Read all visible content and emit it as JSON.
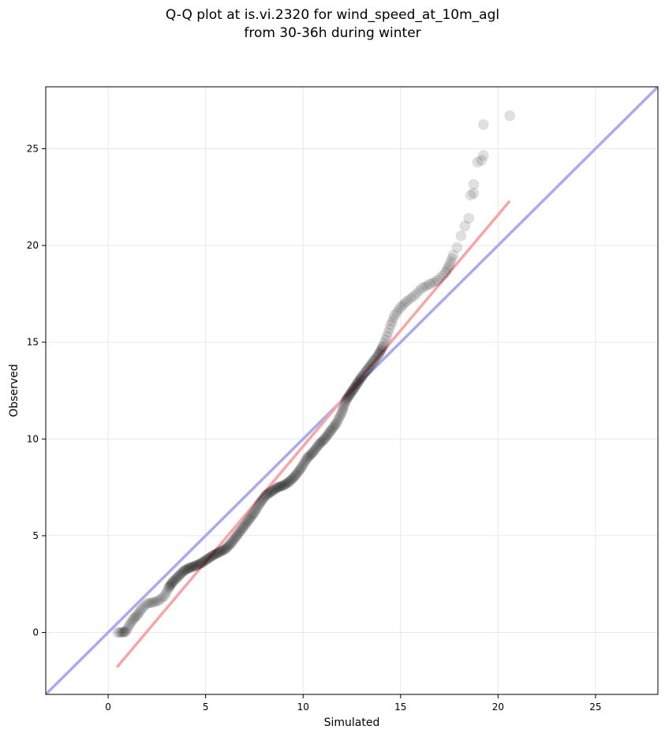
{
  "chart_data": {
    "type": "scatter",
    "title_line1": "Q-Q plot at is.vi.2320 for wind_speed_at_10m_agl",
    "title_line2": "from 30-36h during winter",
    "xlabel": "Simulated",
    "ylabel": "Observed",
    "xlim": [
      -3.2,
      28.2
    ],
    "ylim": [
      -3.2,
      28.2
    ],
    "xticks": [
      0,
      5,
      10,
      15,
      20,
      25
    ],
    "yticks": [
      0,
      5,
      10,
      15,
      20,
      25
    ],
    "grid": true,
    "colors": {
      "points": "#000000",
      "identity_line": "#aaaaf0",
      "fit_line": "#f5a6a6",
      "grid": "#e8e8e8"
    },
    "identity_line": {
      "x": [
        -3.2,
        28.2
      ],
      "y": [
        -3.2,
        28.2
      ]
    },
    "fit_line": {
      "x": [
        0.45,
        20.6
      ],
      "y": [
        -1.8,
        22.3
      ]
    },
    "points": [
      [
        0.5,
        0.0
      ],
      [
        0.75,
        0.0
      ],
      [
        0.9,
        0.05
      ],
      [
        1.1,
        0.4
      ],
      [
        1.3,
        0.7
      ],
      [
        1.5,
        0.9
      ],
      [
        1.7,
        1.2
      ],
      [
        2.0,
        1.5
      ],
      [
        2.3,
        1.55
      ],
      [
        2.6,
        1.65
      ],
      [
        2.9,
        1.9
      ],
      [
        3.1,
        2.3
      ],
      [
        3.3,
        2.6
      ],
      [
        3.6,
        2.9
      ],
      [
        3.9,
        3.2
      ],
      [
        4.2,
        3.35
      ],
      [
        4.5,
        3.45
      ],
      [
        4.8,
        3.6
      ],
      [
        5.1,
        3.8
      ],
      [
        5.4,
        4.0
      ],
      [
        5.7,
        4.15
      ],
      [
        6.0,
        4.3
      ],
      [
        6.3,
        4.6
      ],
      [
        6.6,
        5.0
      ],
      [
        6.9,
        5.4
      ],
      [
        7.2,
        5.8
      ],
      [
        7.5,
        6.2
      ],
      [
        7.8,
        6.7
      ],
      [
        8.1,
        7.1
      ],
      [
        8.4,
        7.3
      ],
      [
        8.7,
        7.5
      ],
      [
        9.0,
        7.6
      ],
      [
        9.3,
        7.8
      ],
      [
        9.6,
        8.1
      ],
      [
        9.9,
        8.5
      ],
      [
        10.2,
        9.0
      ],
      [
        10.5,
        9.3
      ],
      [
        10.8,
        9.7
      ],
      [
        11.1,
        10.0
      ],
      [
        11.4,
        10.4
      ],
      [
        11.7,
        10.8
      ],
      [
        12.0,
        11.4
      ],
      [
        12.2,
        12.0
      ],
      [
        12.4,
        12.3
      ],
      [
        12.6,
        12.6
      ],
      [
        12.8,
        12.9
      ],
      [
        13.0,
        13.2
      ],
      [
        13.3,
        13.6
      ],
      [
        13.6,
        14.0
      ],
      [
        13.9,
        14.4
      ],
      [
        14.1,
        14.8
      ],
      [
        14.3,
        15.3
      ],
      [
        14.5,
        15.9
      ],
      [
        14.7,
        16.4
      ],
      [
        15.0,
        16.8
      ],
      [
        15.3,
        17.1
      ],
      [
        15.7,
        17.4
      ],
      [
        16.1,
        17.8
      ],
      [
        16.5,
        18.0
      ],
      [
        16.9,
        18.2
      ],
      [
        17.3,
        18.6
      ],
      [
        17.5,
        19.0
      ],
      [
        17.7,
        19.5
      ],
      [
        17.9,
        19.9
      ],
      [
        18.1,
        20.5
      ],
      [
        18.3,
        21.0
      ],
      [
        18.5,
        21.4
      ],
      [
        18.6,
        22.6
      ],
      [
        18.75,
        22.7
      ],
      [
        18.75,
        23.15
      ],
      [
        18.95,
        24.3
      ],
      [
        19.15,
        24.4
      ],
      [
        19.25,
        24.65
      ],
      [
        19.25,
        26.25
      ],
      [
        20.6,
        26.7
      ]
    ]
  }
}
